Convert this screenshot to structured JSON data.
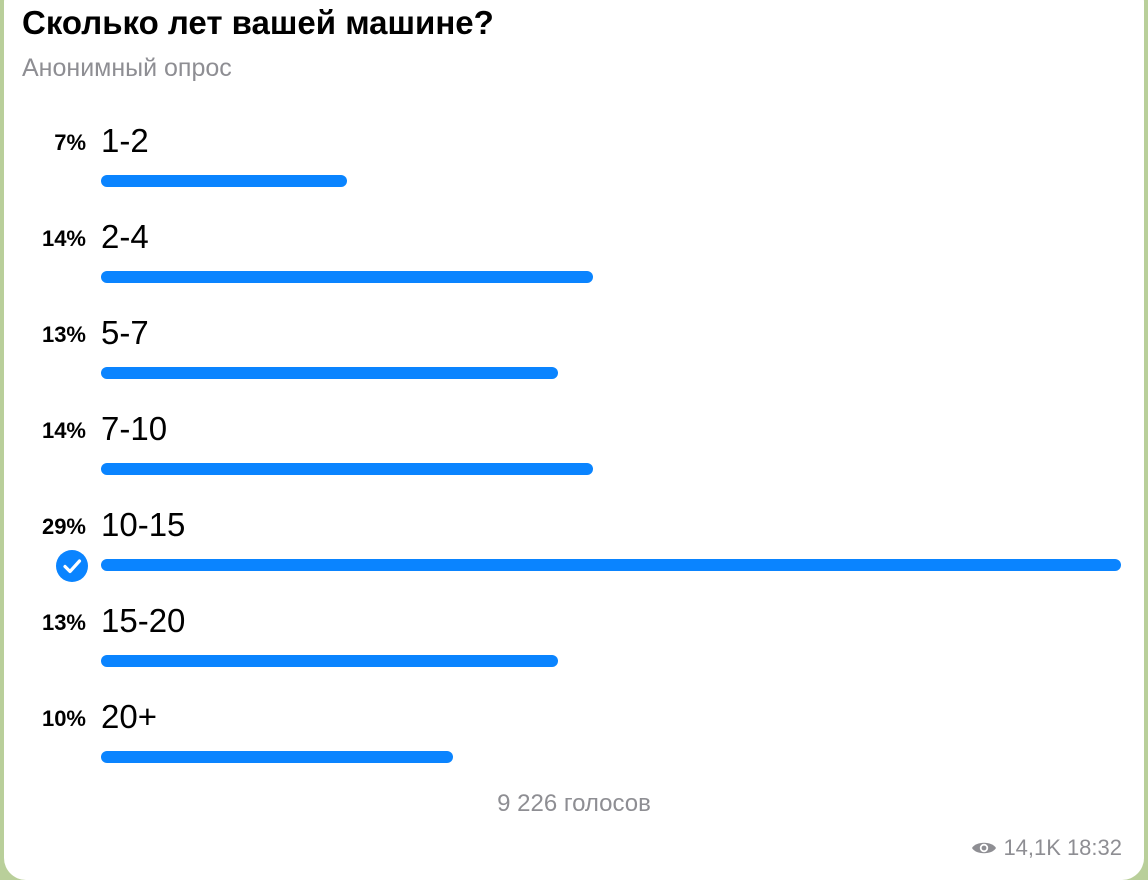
{
  "poll": {
    "question": "Сколько лет вашей машине?",
    "type_label": "Анонимный опрос",
    "options": [
      {
        "label": "1-2",
        "percent_text": "7%",
        "percent": 7,
        "chosen": false
      },
      {
        "label": "2-4",
        "percent_text": "14%",
        "percent": 14,
        "chosen": false
      },
      {
        "label": "5-7",
        "percent_text": "13%",
        "percent": 13,
        "chosen": false
      },
      {
        "label": "7-10",
        "percent_text": "14%",
        "percent": 14,
        "chosen": false
      },
      {
        "label": "10-15",
        "percent_text": "29%",
        "percent": 29,
        "chosen": true
      },
      {
        "label": "15-20",
        "percent_text": "13%",
        "percent": 13,
        "chosen": false
      },
      {
        "label": "20+",
        "percent_text": "10%",
        "percent": 10,
        "chosen": false
      }
    ],
    "total_votes": "9 226 голосов"
  },
  "meta": {
    "views": "14,1K",
    "time": "18:32",
    "views_icon": "eye-icon",
    "chosen_icon": "checkmark-icon"
  },
  "colors": {
    "accent": "#0a84ff",
    "muted": "#8e8e93",
    "background": "#b9cf9a"
  }
}
